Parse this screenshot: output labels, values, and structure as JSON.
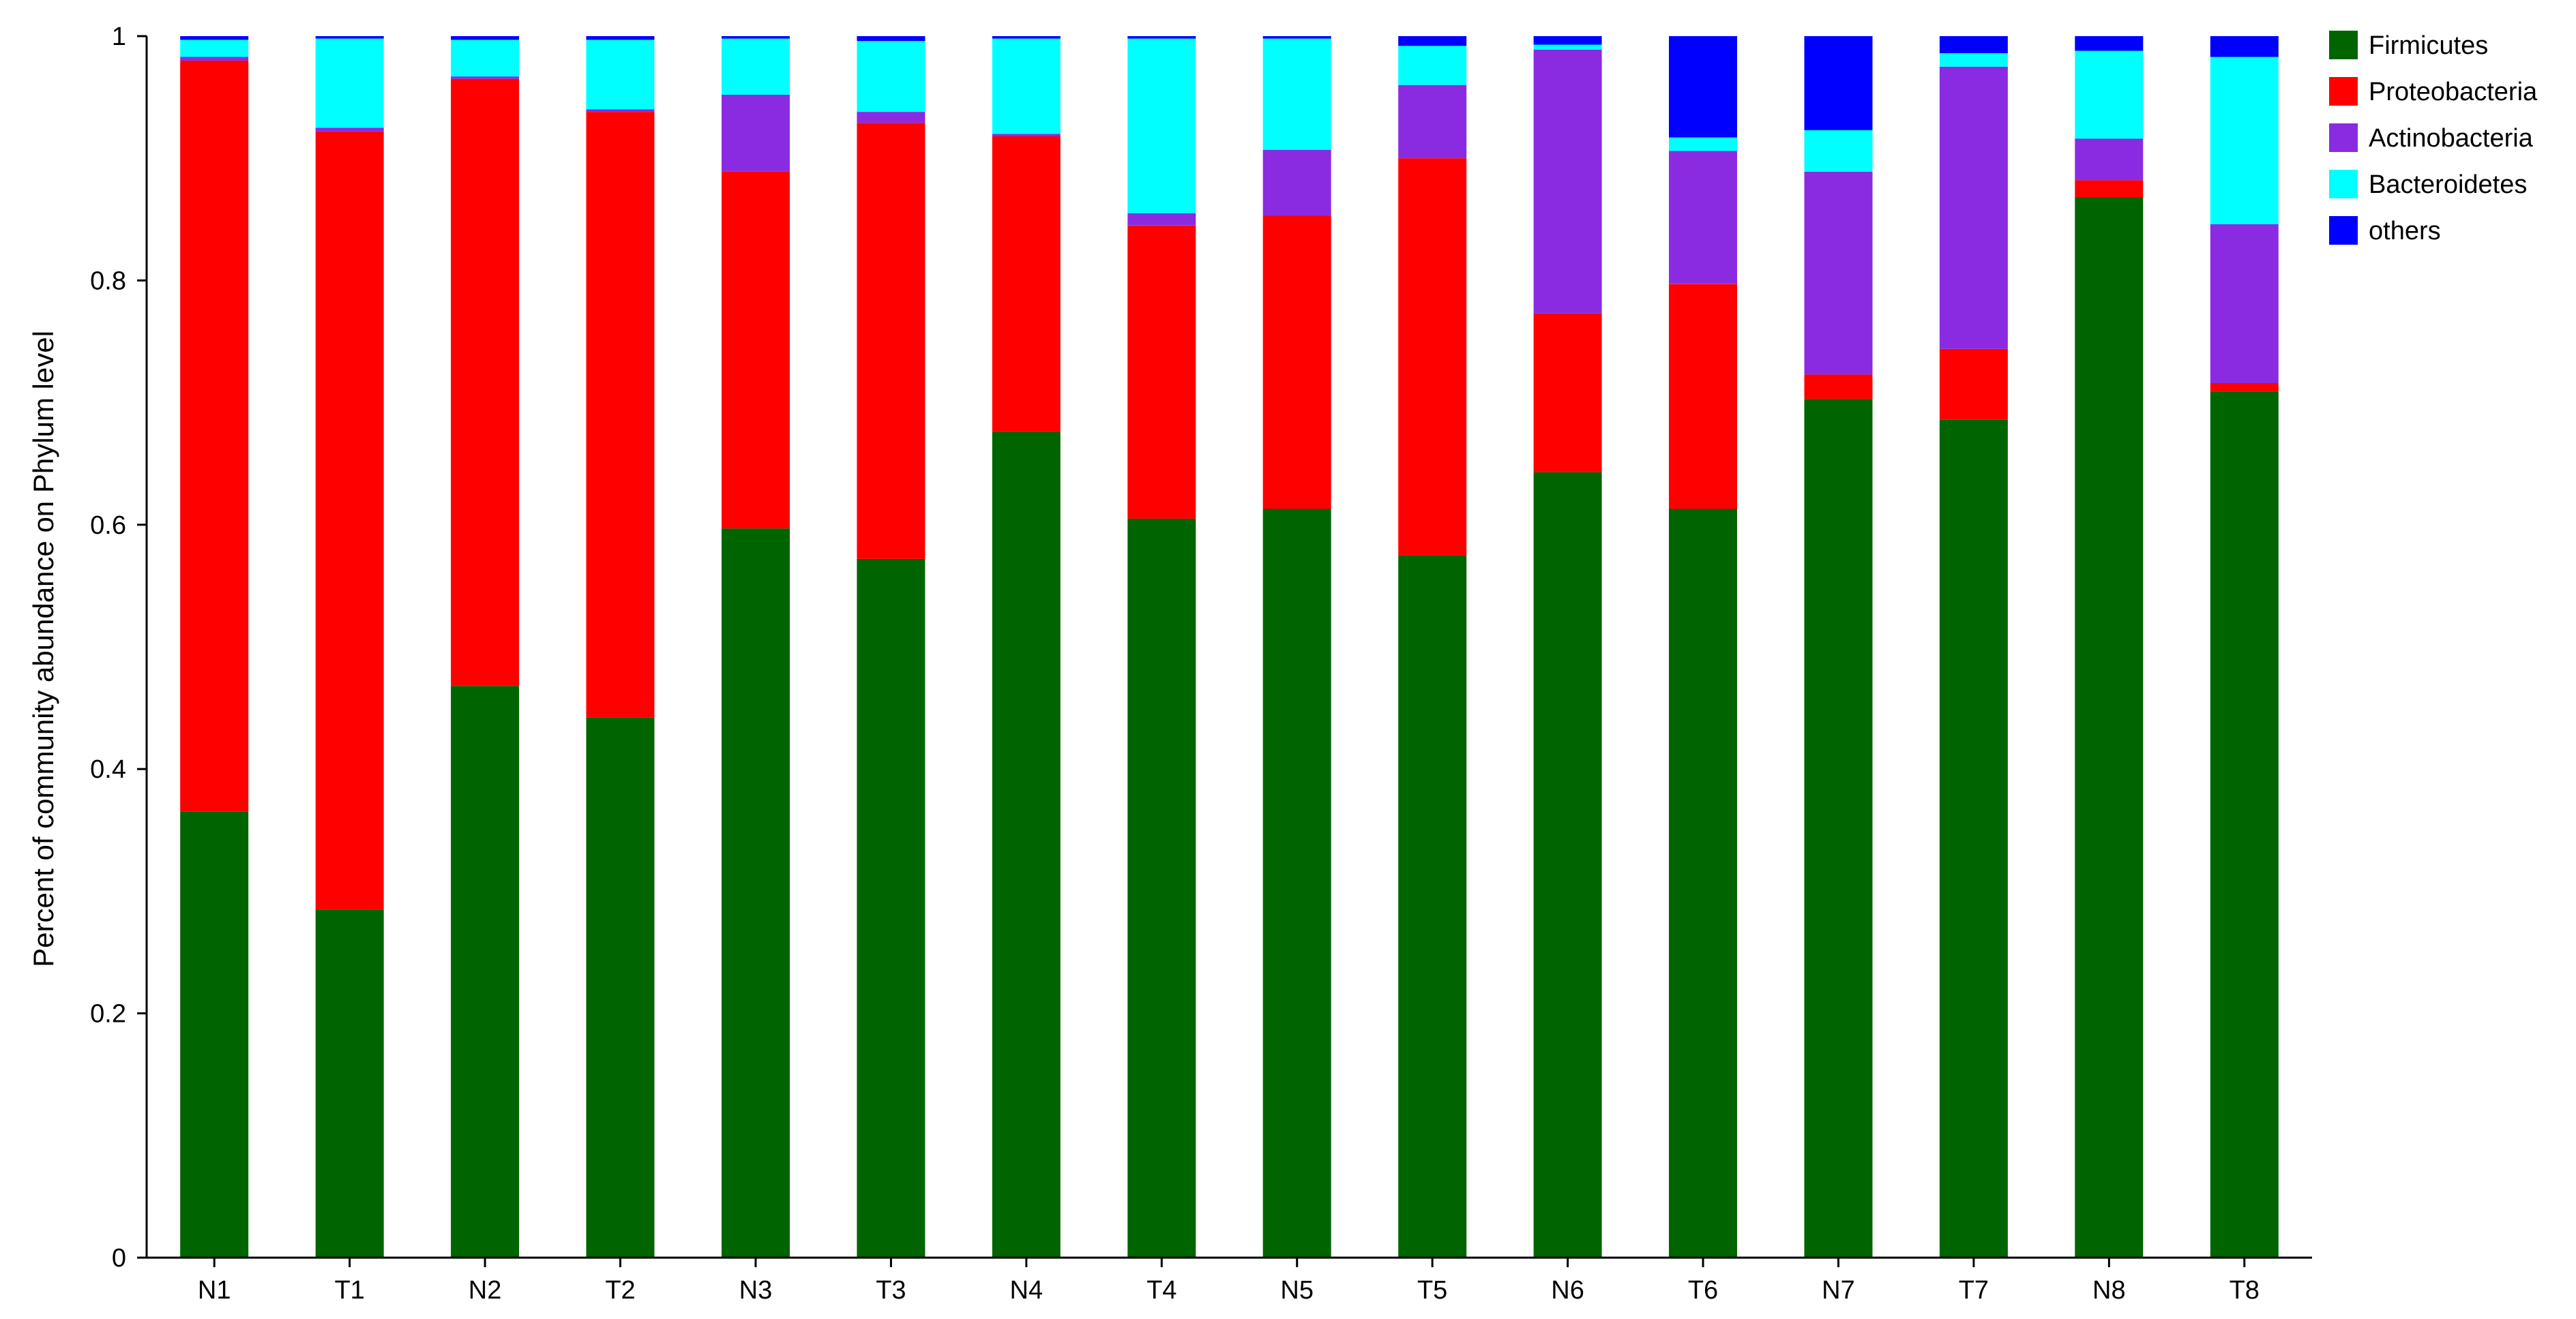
{
  "chart_data": {
    "type": "bar",
    "stacked": true,
    "title": "",
    "xlabel": "",
    "ylabel": "Percent of community abundance on Phylum level",
    "ylim": [
      0,
      1
    ],
    "yticks": [
      "0",
      "0.2",
      "0.4",
      "0.6",
      "0.8",
      "1"
    ],
    "ytick_values": [
      0,
      0.2,
      0.4,
      0.6,
      0.8,
      1
    ],
    "categories": [
      "N1",
      "T1",
      "N2",
      "T2",
      "N3",
      "T3",
      "N4",
      "T4",
      "N5",
      "T5",
      "N6",
      "T6",
      "N7",
      "T7",
      "N8",
      "T8"
    ],
    "legend_position": "top-right",
    "series": [
      {
        "name": "Firmicutes",
        "color": "#006400",
        "values": [
          0.365,
          0.285,
          0.468,
          0.442,
          0.597,
          0.572,
          0.676,
          0.605,
          0.613,
          0.575,
          0.643,
          0.613,
          0.703,
          0.686,
          0.868,
          0.709
        ]
      },
      {
        "name": "Proteobacteria",
        "color": "#ff0000",
        "values": [
          0.615,
          0.637,
          0.497,
          0.496,
          0.292,
          0.357,
          0.242,
          0.24,
          0.24,
          0.325,
          0.13,
          0.184,
          0.02,
          0.058,
          0.014,
          0.007
        ]
      },
      {
        "name": "Actinobacteria",
        "color": "#8a2be2",
        "values": [
          0.003,
          0.003,
          0.002,
          0.002,
          0.063,
          0.009,
          0.002,
          0.01,
          0.054,
          0.06,
          0.216,
          0.109,
          0.166,
          0.231,
          0.034,
          0.13
        ]
      },
      {
        "name": "Bacteroidetes",
        "color": "#00ffff",
        "values": [
          0.014,
          0.073,
          0.03,
          0.057,
          0.046,
          0.058,
          0.078,
          0.143,
          0.091,
          0.032,
          0.004,
          0.011,
          0.034,
          0.011,
          0.072,
          0.137
        ]
      },
      {
        "name": "others",
        "color": "#0000ff",
        "values": [
          0.003,
          0.002,
          0.003,
          0.003,
          0.002,
          0.004,
          0.002,
          0.002,
          0.002,
          0.008,
          0.007,
          0.083,
          0.077,
          0.014,
          0.012,
          0.017
        ]
      }
    ]
  }
}
